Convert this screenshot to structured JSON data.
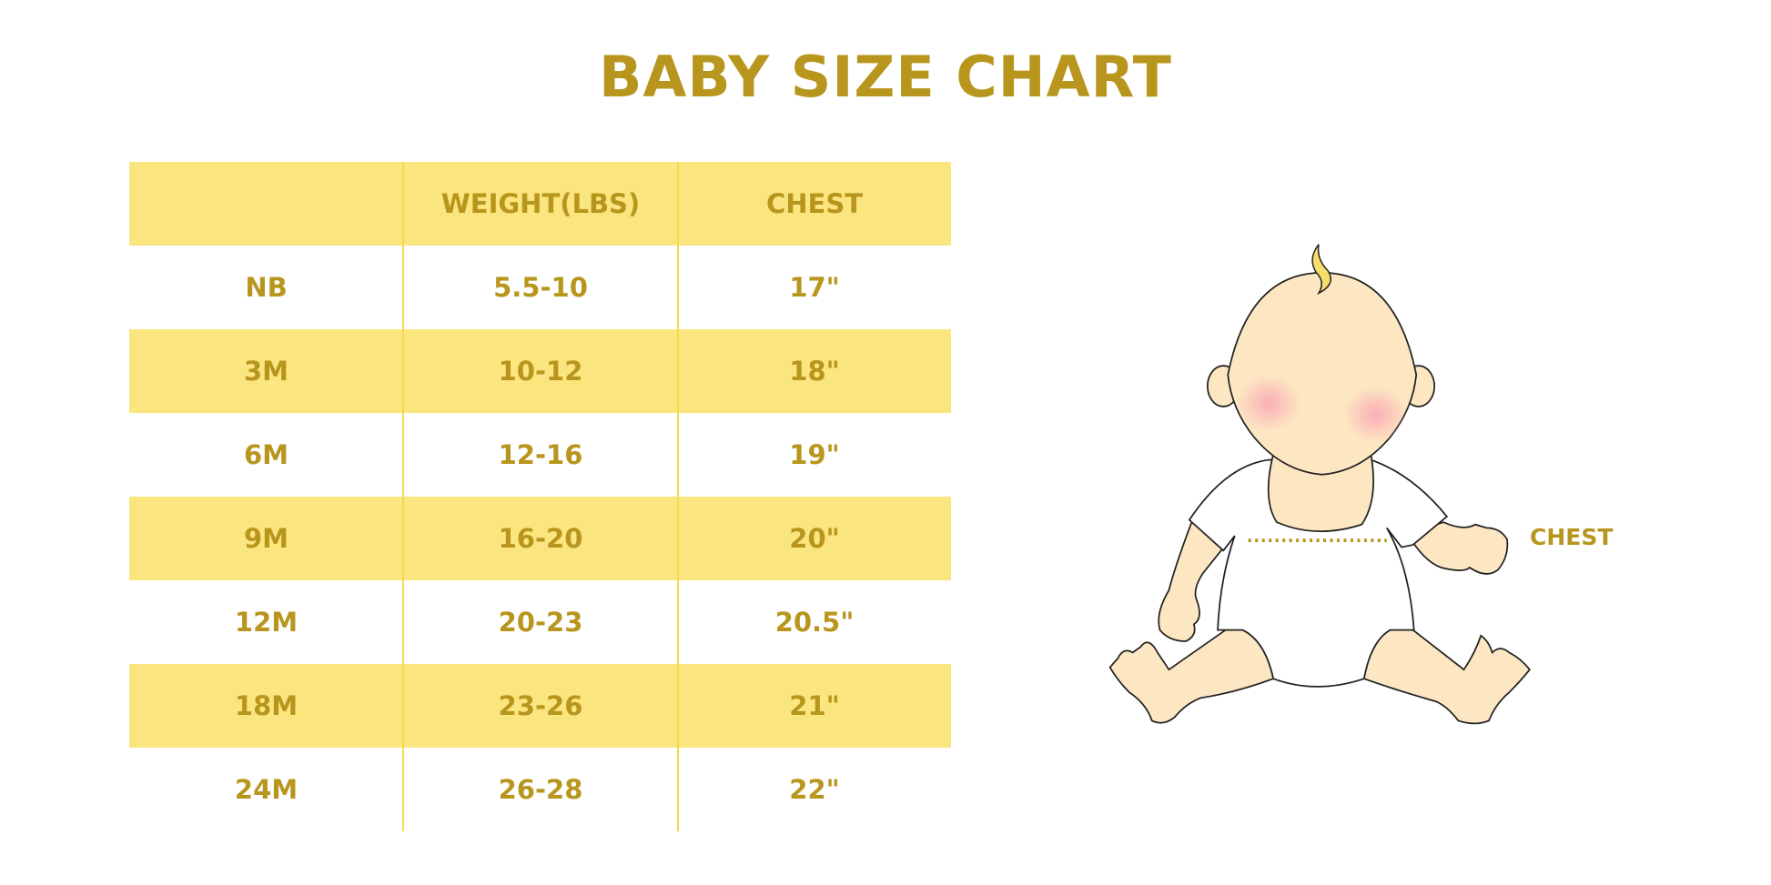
{
  "title": "BABY SIZE CHART",
  "table": {
    "headers": [
      "",
      "WEIGHT(LBS)",
      "CHEST"
    ],
    "rows": [
      [
        "NB",
        "5.5-10",
        "17\""
      ],
      [
        "3M",
        "10-12",
        "18\""
      ],
      [
        "6M",
        "12-16",
        "19\""
      ],
      [
        "9M",
        "16-20",
        "20\""
      ],
      [
        "12M",
        "20-23",
        "20.5\""
      ],
      [
        "18M",
        "23-26",
        "21\""
      ],
      [
        "24M",
        "26-28",
        "22\""
      ]
    ]
  },
  "illustration": {
    "chest_label": "CHEST"
  },
  "colors": {
    "text": "#B8961E",
    "band": "#FAE57E",
    "divider": "#F7D84A"
  }
}
